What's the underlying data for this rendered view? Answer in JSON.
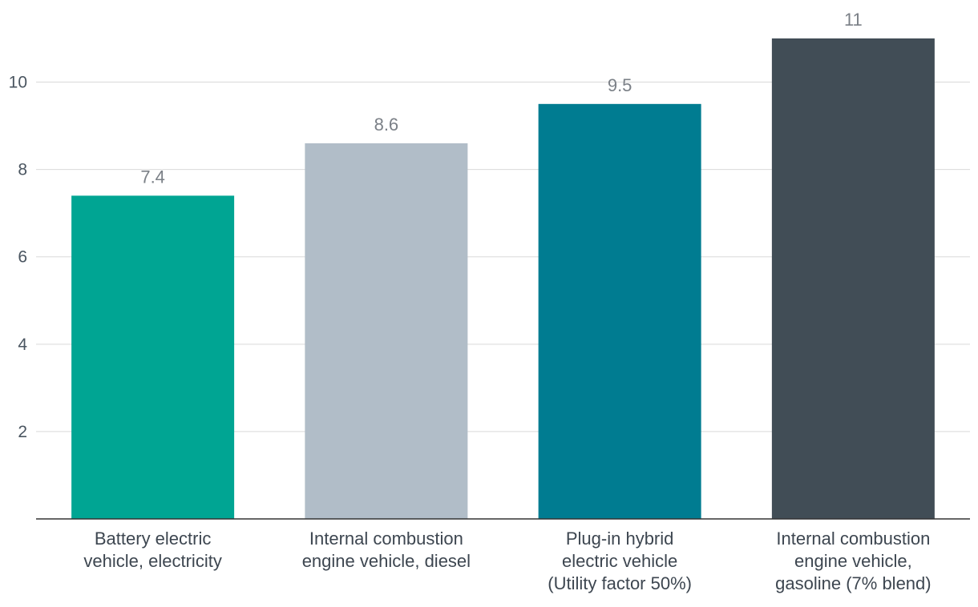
{
  "chart_data": {
    "type": "bar",
    "title": "",
    "xlabel": "",
    "ylabel": "",
    "categories": [
      [
        "Battery electric",
        "vehicle, electricity"
      ],
      [
        "Internal combustion",
        "engine vehicle, diesel"
      ],
      [
        "Plug-in hybrid",
        "electric vehicle",
        "(Utility factor 50%)"
      ],
      [
        "Internal combustion",
        "engine vehicle,",
        "gasoline (7% blend)"
      ]
    ],
    "values": [
      7.4,
      8.6,
      9.5,
      11
    ],
    "value_labels": [
      "7.4",
      "8.6",
      "9.5",
      "11"
    ],
    "colors": [
      "#00a593",
      "#b1bdc8",
      "#007c91",
      "#414d56"
    ],
    "ylim": [
      0,
      11
    ],
    "yticks": [
      2,
      4,
      6,
      8,
      10
    ],
    "grid": true,
    "legend": "none"
  }
}
